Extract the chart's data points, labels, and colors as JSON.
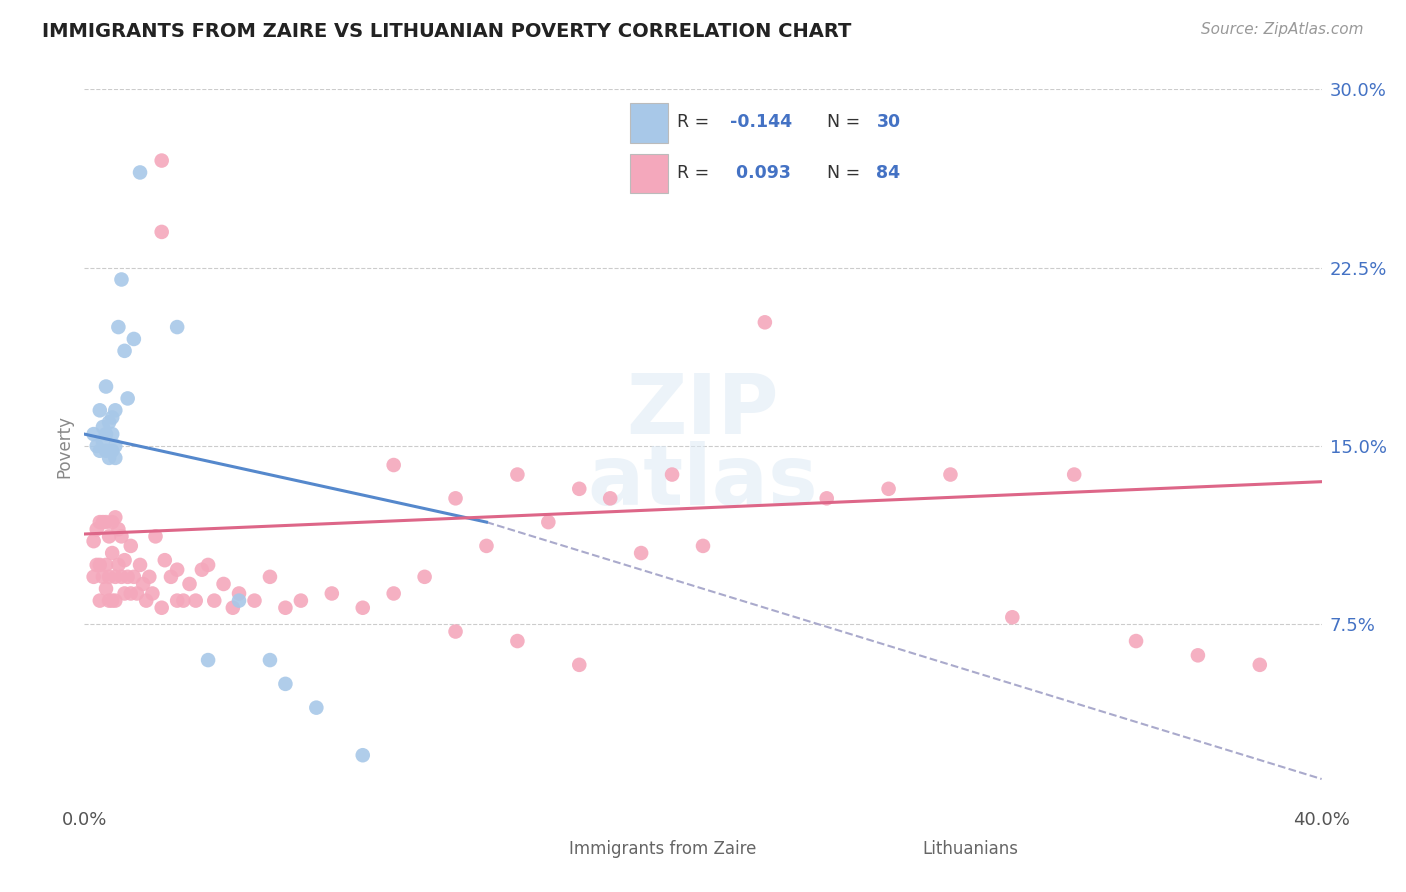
{
  "title": "IMMIGRANTS FROM ZAIRE VS LITHUANIAN POVERTY CORRELATION CHART",
  "source": "Source: ZipAtlas.com",
  "label_blue": "Immigrants from Zaire",
  "label_pink": "Lithuanians",
  "ylabel": "Poverty",
  "xlim": [
    0.0,
    0.4
  ],
  "ylim": [
    0.0,
    0.3
  ],
  "yticks": [
    0.075,
    0.15,
    0.225,
    0.3
  ],
  "ytick_labels": [
    "7.5%",
    "15.0%",
    "22.5%",
    "30.0%"
  ],
  "color_blue": "#a8c8e8",
  "color_pink": "#f4a8bc",
  "line_blue": "#5588cc",
  "line_pink": "#dd6688",
  "line_dashed_color": "#aaaacc",
  "title_color": "#222222",
  "source_color": "#999999",
  "grid_color": "#cccccc",
  "r_color": "#4472c4",
  "R_blue": "-0.144",
  "N_blue": "30",
  "R_pink": "0.093",
  "N_pink": "84",
  "blue_line_x0": 0.0,
  "blue_line_x1": 0.13,
  "blue_line_y0": 0.155,
  "blue_line_y1": 0.118,
  "pink_line_x0": 0.0,
  "pink_line_x1": 0.4,
  "pink_line_y0": 0.113,
  "pink_line_y1": 0.135,
  "dash_line_x0": 0.13,
  "dash_line_x1": 0.4,
  "dash_line_y0": 0.118,
  "dash_line_y1": 0.01,
  "blue_x": [
    0.003,
    0.004,
    0.005,
    0.005,
    0.006,
    0.006,
    0.007,
    0.007,
    0.007,
    0.008,
    0.008,
    0.009,
    0.009,
    0.009,
    0.01,
    0.01,
    0.01,
    0.011,
    0.012,
    0.013,
    0.014,
    0.016,
    0.018,
    0.03,
    0.04,
    0.05,
    0.06,
    0.065,
    0.075,
    0.09
  ],
  "blue_y": [
    0.155,
    0.15,
    0.148,
    0.165,
    0.152,
    0.158,
    0.148,
    0.155,
    0.175,
    0.145,
    0.16,
    0.148,
    0.155,
    0.162,
    0.145,
    0.15,
    0.165,
    0.2,
    0.22,
    0.19,
    0.17,
    0.195,
    0.265,
    0.2,
    0.06,
    0.085,
    0.06,
    0.05,
    0.04,
    0.02
  ],
  "pink_x": [
    0.003,
    0.003,
    0.004,
    0.004,
    0.005,
    0.005,
    0.005,
    0.006,
    0.006,
    0.007,
    0.007,
    0.007,
    0.008,
    0.008,
    0.008,
    0.009,
    0.009,
    0.009,
    0.01,
    0.01,
    0.01,
    0.011,
    0.011,
    0.012,
    0.012,
    0.013,
    0.013,
    0.014,
    0.015,
    0.015,
    0.016,
    0.017,
    0.018,
    0.019,
    0.02,
    0.021,
    0.022,
    0.023,
    0.025,
    0.026,
    0.028,
    0.03,
    0.032,
    0.034,
    0.036,
    0.038,
    0.04,
    0.042,
    0.045,
    0.048,
    0.05,
    0.055,
    0.06,
    0.065,
    0.07,
    0.08,
    0.09,
    0.1,
    0.11,
    0.12,
    0.13,
    0.14,
    0.15,
    0.16,
    0.17,
    0.18,
    0.19,
    0.2,
    0.22,
    0.24,
    0.26,
    0.28,
    0.3,
    0.32,
    0.34,
    0.36,
    0.38,
    0.1,
    0.12,
    0.14,
    0.16,
    0.03,
    0.025,
    0.025
  ],
  "pink_y": [
    0.11,
    0.095,
    0.115,
    0.1,
    0.1,
    0.118,
    0.085,
    0.095,
    0.118,
    0.1,
    0.118,
    0.09,
    0.095,
    0.112,
    0.085,
    0.105,
    0.118,
    0.085,
    0.095,
    0.12,
    0.085,
    0.1,
    0.115,
    0.095,
    0.112,
    0.088,
    0.102,
    0.095,
    0.088,
    0.108,
    0.095,
    0.088,
    0.1,
    0.092,
    0.085,
    0.095,
    0.088,
    0.112,
    0.082,
    0.102,
    0.095,
    0.098,
    0.085,
    0.092,
    0.085,
    0.098,
    0.1,
    0.085,
    0.092,
    0.082,
    0.088,
    0.085,
    0.095,
    0.082,
    0.085,
    0.088,
    0.082,
    0.088,
    0.095,
    0.128,
    0.108,
    0.138,
    0.118,
    0.132,
    0.128,
    0.105,
    0.138,
    0.108,
    0.202,
    0.128,
    0.132,
    0.138,
    0.078,
    0.138,
    0.068,
    0.062,
    0.058,
    0.142,
    0.072,
    0.068,
    0.058,
    0.085,
    0.27,
    0.24
  ]
}
